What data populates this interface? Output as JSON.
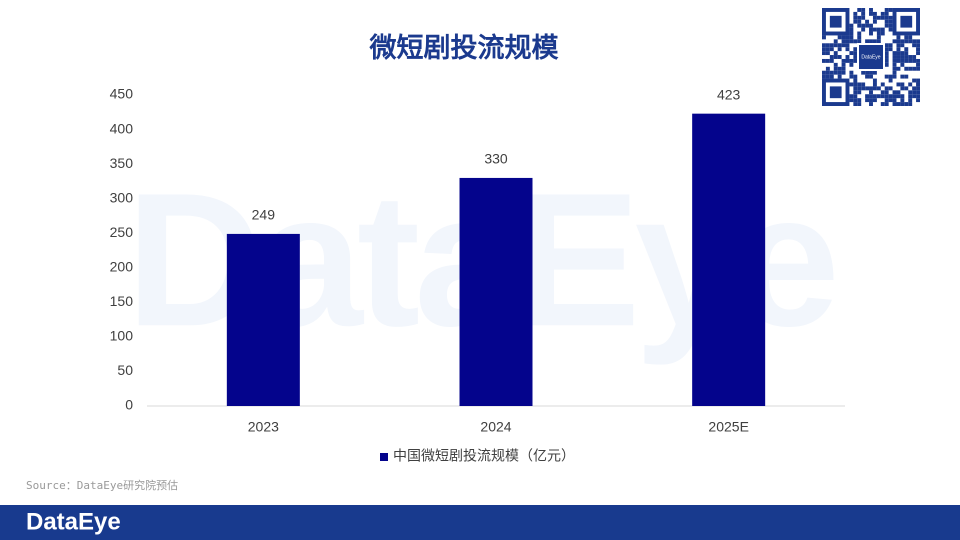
{
  "chart_data": {
    "type": "bar",
    "title": "微短剧投流规模",
    "categories": [
      "2023",
      "2024",
      "2025E"
    ],
    "series": [
      {
        "name": "中国微短剧投流规模（亿元）",
        "color": "#04048c",
        "values": [
          249,
          330,
          423
        ]
      }
    ],
    "ylim": [
      0,
      450
    ],
    "yticks": [
      0,
      50,
      100,
      150,
      200,
      250,
      300,
      350,
      400,
      450
    ],
    "legend": "bottom",
    "source": "Source：DataEye研究院预估",
    "brand": "DataEye"
  }
}
